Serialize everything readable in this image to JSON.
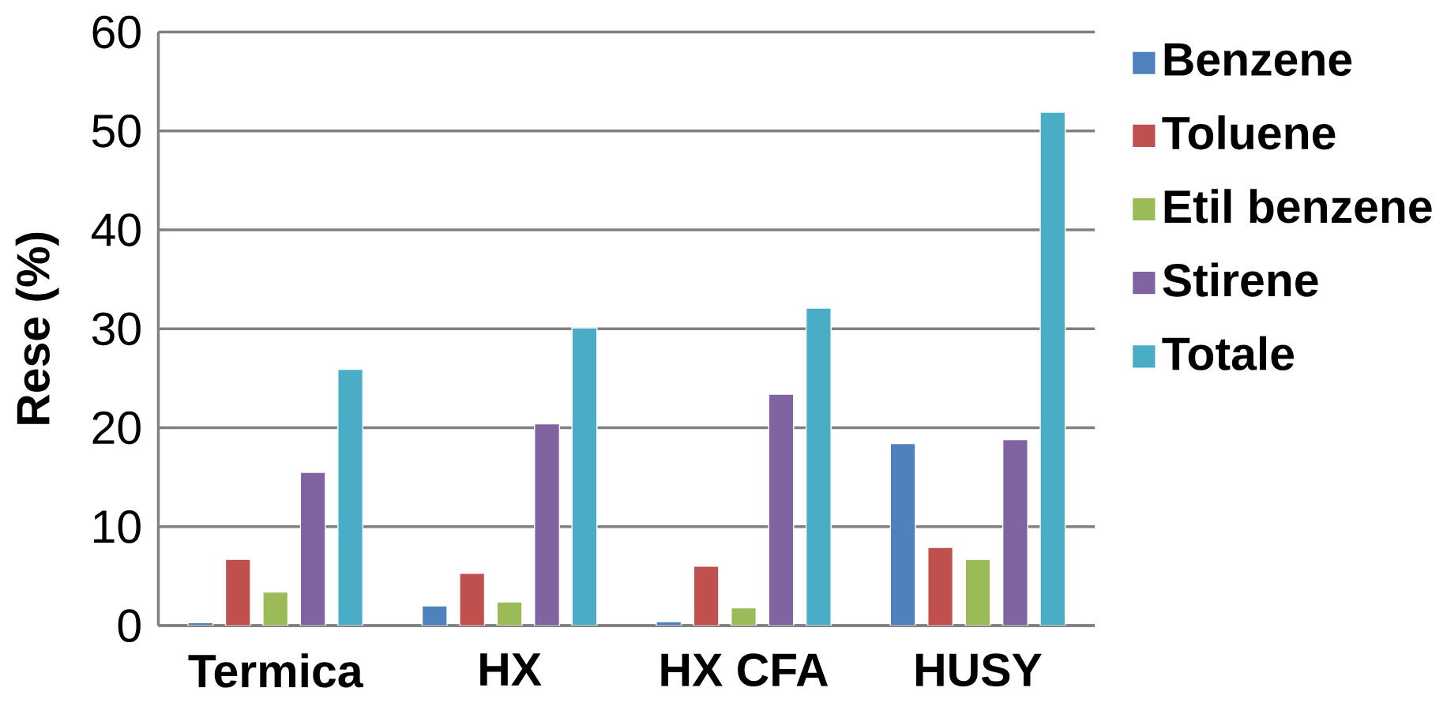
{
  "chart_data": {
    "type": "bar",
    "ylabel": "Rese (%)",
    "categories": [
      "Termica",
      "HX",
      "HX CFA",
      "HUSY"
    ],
    "series": [
      {
        "name": "Benzene",
        "color": "#4f81bd",
        "values": [
          0.3,
          2.0,
          0.4,
          18.4
        ]
      },
      {
        "name": "Toluene",
        "color": "#c0504d",
        "values": [
          6.7,
          5.3,
          6.0,
          7.9
        ]
      },
      {
        "name": "Etil benzene",
        "color": "#9bbb59",
        "values": [
          3.4,
          2.4,
          1.8,
          6.7
        ]
      },
      {
        "name": "Stirene",
        "color": "#8064a2",
        "values": [
          15.5,
          20.4,
          23.4,
          18.8
        ]
      },
      {
        "name": "Totale",
        "color": "#4bacc6",
        "values": [
          25.9,
          30.1,
          32.1,
          51.9
        ]
      }
    ],
    "ylim": [
      0,
      60
    ],
    "yticks": [
      0,
      10,
      20,
      30,
      40,
      50,
      60
    ],
    "grid": "y",
    "legend": "right"
  }
}
